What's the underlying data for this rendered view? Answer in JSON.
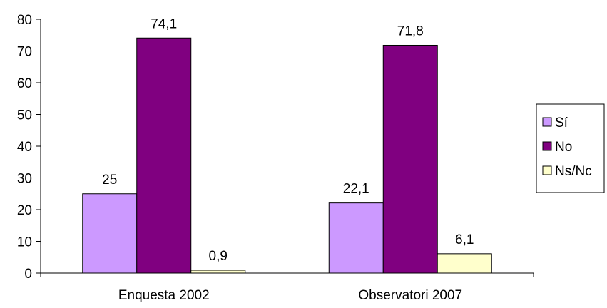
{
  "chart_data": {
    "type": "bar",
    "categories": [
      "Enquesta 2002",
      "Observatori 2007"
    ],
    "series": [
      {
        "name": "Sí",
        "values": [
          25,
          22.1
        ],
        "labels": [
          "25",
          "22,1"
        ],
        "color": "#CC99FF"
      },
      {
        "name": "No",
        "values": [
          74.1,
          71.8
        ],
        "labels": [
          "74,1",
          "71,8"
        ],
        "color": "#800080"
      },
      {
        "name": "Ns/Nc",
        "values": [
          0.9,
          6.1
        ],
        "labels": [
          "0,9",
          "6,1"
        ],
        "color": "#FFFFCC"
      }
    ],
    "ylim": [
      0,
      80
    ],
    "yticks": [
      0,
      10,
      20,
      30,
      40,
      50,
      60,
      70,
      80
    ],
    "grid": false,
    "legend": "right",
    "xlabel": "",
    "ylabel": "",
    "title": ""
  }
}
